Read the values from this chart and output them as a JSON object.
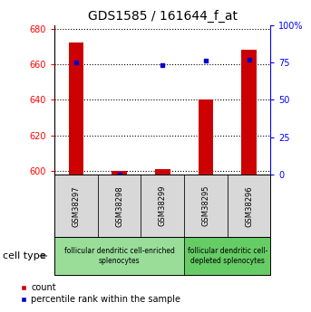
{
  "title": "GDS1585 / 161644_f_at",
  "samples": [
    "GSM38297",
    "GSM38298",
    "GSM38299",
    "GSM38295",
    "GSM38296"
  ],
  "counts": [
    672,
    600,
    601,
    640,
    668
  ],
  "percentiles": [
    75,
    0,
    73,
    76,
    77
  ],
  "ylim_left": [
    598,
    682
  ],
  "ylim_right": [
    0,
    100
  ],
  "yticks_left": [
    600,
    620,
    640,
    660,
    680
  ],
  "yticks_right": [
    0,
    25,
    50,
    75,
    100
  ],
  "bar_color": "#cc0000",
  "dot_color": "#0000cc",
  "bar_width": 0.35,
  "groups": [
    {
      "label": "follicular dendritic cell-enriched\nsplenocytes",
      "n_samples": 3,
      "color": "#99dd99"
    },
    {
      "label": "follicular dendritic cell-\ndepleted splenocytes",
      "n_samples": 2,
      "color": "#66cc66"
    }
  ],
  "cell_type_label": "cell type",
  "legend_count_label": "count",
  "legend_percentile_label": "percentile rank within the sample",
  "title_fontsize": 10,
  "tick_fontsize": 7,
  "sample_fontsize": 6,
  "group_fontsize": 5.5,
  "legend_fontsize": 7
}
